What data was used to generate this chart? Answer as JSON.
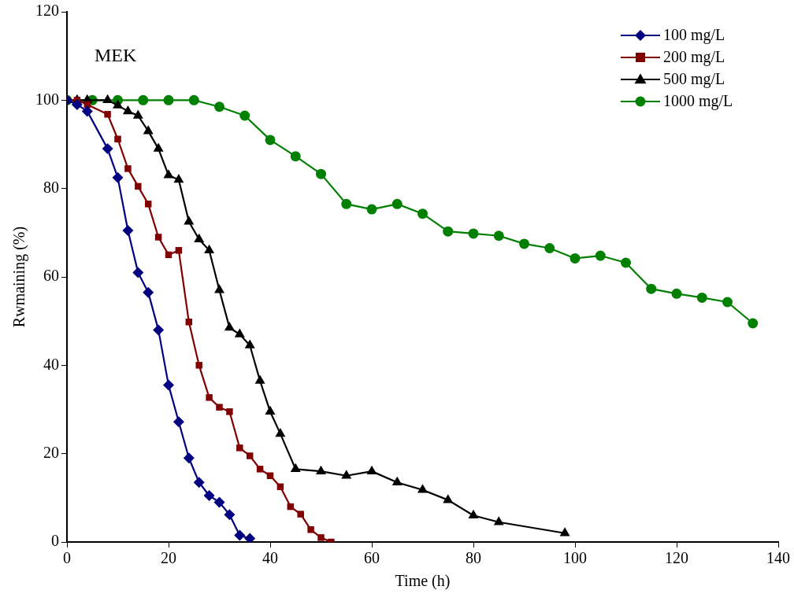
{
  "chart_data": {
    "type": "line",
    "xlabel": "Time (h)",
    "ylabel": "Rwmaining (%)",
    "annotations": [
      "MEK"
    ],
    "xlim": [
      0,
      140
    ],
    "xticks": [
      0,
      20,
      40,
      60,
      80,
      100,
      120,
      140
    ],
    "ylim": [
      0,
      120
    ],
    "yticks": [
      0,
      20,
      40,
      60,
      80,
      100,
      120
    ],
    "grid": false,
    "legend": "top right",
    "line_style": "solid",
    "series": [
      {
        "name": "100 mg/L",
        "color": "#000080",
        "marker": "diamond",
        "x": [
          0,
          2,
          4,
          8,
          10,
          12,
          14,
          16,
          18,
          20,
          22,
          24,
          26,
          28,
          30,
          32,
          34,
          36
        ],
        "values": [
          100,
          99,
          97.5,
          89,
          82.5,
          70.5,
          61,
          56.5,
          48,
          35.5,
          27.2,
          19,
          13.5,
          10.5,
          9,
          6.2,
          1.5,
          0.8
        ]
      },
      {
        "name": "200 mg/L",
        "color": "#800000",
        "marker": "square",
        "x": [
          0,
          2,
          4,
          8,
          10,
          12,
          14,
          16,
          18,
          20,
          22,
          24,
          26,
          28,
          30,
          32,
          34,
          36,
          38,
          40,
          42,
          44,
          46,
          48,
          50,
          52
        ],
        "values": [
          100,
          100,
          99,
          96.8,
          91.2,
          84.5,
          80.5,
          76.5,
          69,
          65,
          66,
          49.8,
          40,
          32.7,
          30.5,
          29.5,
          21.3,
          19.5,
          16.5,
          15,
          12.5,
          8,
          6.3,
          2.8,
          1,
          0
        ]
      },
      {
        "name": "500 mg/L",
        "color": "#000000",
        "marker": "triangle",
        "x": [
          0,
          2,
          4,
          8,
          10,
          12,
          14,
          16,
          18,
          20,
          22,
          24,
          26,
          28,
          30,
          32,
          34,
          36,
          38,
          40,
          42,
          45,
          50,
          55,
          60,
          65,
          70,
          75,
          80,
          85,
          98
        ],
        "values": [
          100,
          100,
          100,
          100,
          98.8,
          97.5,
          96.5,
          93,
          89,
          83,
          82,
          72.5,
          68.5,
          66,
          57,
          48.5,
          47,
          44.5,
          36.5,
          29.5,
          24.5,
          16.5,
          16,
          15,
          16,
          13.5,
          11.8,
          9.5,
          6,
          4.5,
          2
        ]
      },
      {
        "name": "1000 mg/L",
        "color": "#008000",
        "marker": "circle",
        "x": [
          0,
          5,
          10,
          15,
          20,
          25,
          30,
          35,
          40,
          45,
          50,
          55,
          60,
          65,
          70,
          75,
          80,
          85,
          90,
          95,
          100,
          105,
          110,
          115,
          120,
          125,
          130,
          135
        ],
        "values": [
          100,
          100,
          100,
          100,
          100,
          100,
          98.5,
          96.5,
          91,
          87.3,
          83.3,
          76.5,
          75.3,
          76.5,
          74.3,
          70.3,
          69.8,
          69.3,
          67.5,
          66.5,
          64.2,
          64.8,
          63.2,
          57.3,
          56.2,
          55.3,
          54.3,
          49.5
        ]
      }
    ]
  }
}
